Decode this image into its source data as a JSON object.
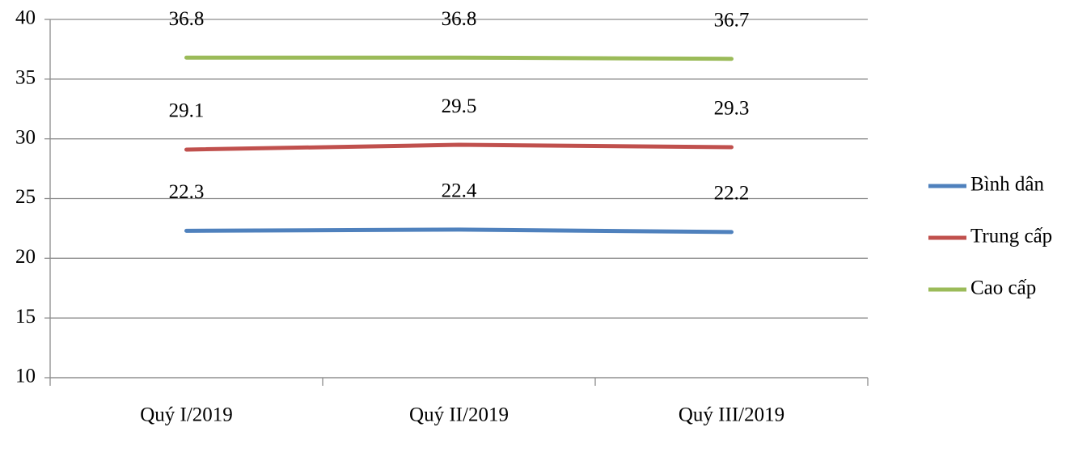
{
  "chart_data": {
    "type": "line",
    "categories": [
      "Quý I/2019",
      "Quý II/2019",
      "Quý III/2019"
    ],
    "series": [
      {
        "name": "Bình dân",
        "color": "#4f81bd",
        "values": [
          22.3,
          22.4,
          22.2
        ]
      },
      {
        "name": "Trung cấp",
        "color": "#c0504d",
        "values": [
          29.1,
          29.5,
          29.3
        ]
      },
      {
        "name": "Cao cấp",
        "color": "#9bbb59",
        "values": [
          36.8,
          36.8,
          36.7
        ]
      }
    ],
    "ylim": [
      10,
      40
    ],
    "yticks": [
      10,
      15,
      20,
      25,
      30,
      35,
      40
    ],
    "grid": true,
    "legend": "right"
  }
}
